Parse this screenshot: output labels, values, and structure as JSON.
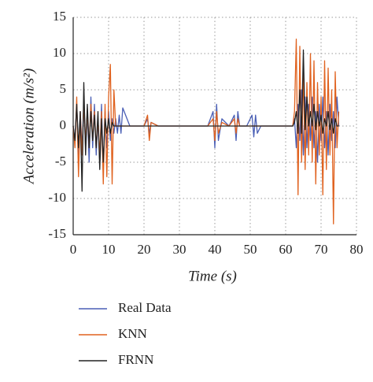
{
  "chart_data": {
    "type": "line",
    "xlabel": "Time (s)",
    "ylabel": "Acceleration (m/s²)",
    "x": [
      0,
      0.5,
      1,
      1.5,
      2,
      2.5,
      3,
      3.5,
      4,
      4.5,
      5,
      5.5,
      6,
      6.5,
      7,
      7.5,
      8,
      8.5,
      9,
      9.5,
      10,
      10.5,
      11,
      11.5,
      12,
      12.5,
      13,
      13.5,
      14,
      16,
      18,
      20,
      21,
      21.5,
      22,
      24,
      30,
      38,
      39.5,
      40,
      40.5,
      41,
      42,
      44,
      45.5,
      46,
      46.5,
      47,
      49,
      50.5,
      51,
      51.5,
      52,
      53,
      58,
      62,
      62.5,
      63,
      63.5,
      64,
      64.5,
      65,
      65.5,
      66,
      66.5,
      67,
      67.5,
      68,
      68.5,
      69,
      69.5,
      70,
      70.5,
      71,
      71.5,
      72,
      72.5,
      73,
      73.5,
      74,
      74.5,
      75
    ],
    "series": [
      {
        "name": "Real Data",
        "color": "#4a5fb5",
        "values": [
          0,
          -2,
          3,
          -4,
          2,
          -3,
          3,
          -3,
          2,
          -5,
          4,
          -3,
          3,
          -4,
          1,
          -5,
          3,
          -6,
          2,
          -3,
          2,
          -2,
          1,
          -1,
          1,
          -1,
          1.5,
          -1,
          2.5,
          0,
          0,
          0,
          1,
          -1,
          0.5,
          0,
          0,
          0,
          2,
          -3,
          3,
          -2,
          1,
          0,
          1.5,
          -2,
          2,
          0,
          0,
          1.5,
          -1.5,
          1.5,
          -1,
          0,
          0,
          0,
          1,
          -3,
          3,
          -2,
          5,
          -4,
          4,
          -3,
          3,
          -2,
          4,
          -3,
          2,
          -5,
          3,
          -2,
          4,
          -3,
          2,
          -4,
          3,
          -2,
          2,
          -3,
          4,
          0
        ]
      },
      {
        "name": "KNN",
        "color": "#e0621f",
        "values": [
          0,
          -3,
          4,
          -7,
          2,
          -4,
          3,
          -2,
          2,
          -3,
          3,
          -2,
          2,
          -3,
          1,
          -4,
          2,
          -8,
          3,
          -7,
          4,
          8.5,
          -8,
          5,
          0,
          0,
          0,
          0,
          0,
          0,
          0,
          0,
          1.5,
          -2,
          0.5,
          0,
          0,
          0,
          1,
          -2,
          2,
          -1,
          0.5,
          0,
          1,
          -1,
          1,
          0,
          0,
          0,
          0,
          0,
          0,
          0,
          0,
          0,
          2,
          12,
          -9.5,
          11,
          -5,
          8,
          -6,
          6,
          -4,
          10,
          -5,
          9,
          -8,
          6,
          -4,
          4,
          -9.5,
          9,
          -6,
          8,
          -4,
          5,
          -13.5,
          7.5,
          -3,
          2
        ]
      },
      {
        "name": "FRNN",
        "color": "#222222",
        "values": [
          0,
          -2,
          3,
          -3,
          2,
          -9,
          6,
          -4,
          3,
          -3,
          2,
          -2,
          1.5,
          -3,
          2,
          -6,
          1,
          -5,
          1,
          -1,
          1,
          -1,
          0.5,
          0,
          0,
          0,
          0,
          0,
          0,
          0,
          0,
          0,
          0,
          0,
          0,
          0,
          0,
          0,
          0,
          0,
          0,
          0,
          0,
          0,
          0,
          0,
          0,
          0,
          0,
          0,
          0,
          0,
          0,
          0,
          0,
          0,
          0.5,
          2,
          -1,
          5,
          -1,
          10.5,
          -0.5,
          4,
          0,
          2,
          0,
          3,
          -0.5,
          2,
          0,
          1.5,
          -1,
          1,
          0,
          2,
          -0.5,
          1,
          -1,
          1,
          0,
          0
        ]
      }
    ],
    "xlim": [
      0,
      80
    ],
    "xticks": [
      0,
      10,
      20,
      30,
      40,
      50,
      60,
      70,
      80
    ],
    "ylim": [
      -15,
      15
    ],
    "yticks": [
      15,
      10,
      5,
      0,
      -5,
      -10,
      -15
    ],
    "grid": true,
    "legend": "bottom"
  }
}
